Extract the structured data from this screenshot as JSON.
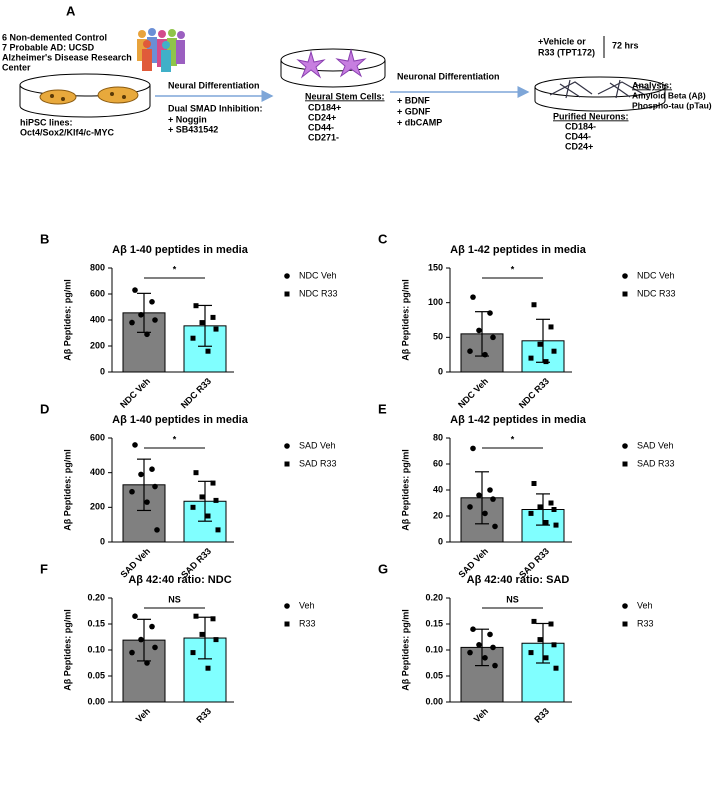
{
  "diagram": {
    "panel": "A",
    "source": [
      "6 Non-demented Control",
      "7 Probable AD: UCSD",
      "Alzheimer's Disease Research",
      "Center"
    ],
    "hipsc": [
      "hiPSC lines:",
      "Oct4/Sox2/Klf4/c-MYC"
    ],
    "step1": "Neural Differentiation",
    "step1_details": [
      "Dual SMAD Inhibition:",
      "+ Noggin",
      "+ SB431542"
    ],
    "nsc_title": "Neural Stem Cells:",
    "nsc_markers": [
      "CD184+",
      "CD24+",
      "CD44-",
      "CD271-"
    ],
    "step2": "Neuronal Differentiation",
    "step2_details": [
      "+ BDNF",
      "+ GDNF",
      "+ dbCAMP"
    ],
    "treatment": [
      "+Vehicle or",
      "R33 (TPT172)"
    ],
    "duration": "72 hrs",
    "neuron_title": "Purified Neurons:",
    "neuron_markers": [
      "CD184-",
      "CD44-",
      "CD24+"
    ],
    "analysis_title": "Analysis:",
    "analysis": [
      "Amyloid Beta (Aβ)",
      "Phospho-tau (pTau)"
    ]
  },
  "chart_data": [
    {
      "type": "bar",
      "panel": "B",
      "title": "Aβ 1-40 peptides in media",
      "ylabel": "Aβ Peptides: pg/ml",
      "categories": [
        "NDC Veh",
        "NDC R33"
      ],
      "values": [
        455,
        355
      ],
      "errors": [
        150,
        157
      ],
      "colors": [
        "#808080",
        "#80ffff"
      ],
      "points": [
        [
          630,
          540,
          440,
          400,
          380,
          290
        ],
        [
          510,
          420,
          380,
          330,
          260,
          160
        ]
      ],
      "legend": [
        "NDC Veh",
        "NDC R33"
      ],
      "markers": [
        "circle",
        "square"
      ],
      "annotation": "*",
      "ylim": [
        0,
        800
      ],
      "yticks": [
        0,
        200,
        400,
        600,
        800
      ]
    },
    {
      "type": "bar",
      "panel": "C",
      "title": "Aβ 1-42 peptides in media",
      "ylabel": "Aβ Peptides: pg/ml",
      "categories": [
        "NDC Veh",
        "NDC R33"
      ],
      "values": [
        55,
        45
      ],
      "errors": [
        32,
        31
      ],
      "colors": [
        "#808080",
        "#80ffff"
      ],
      "points": [
        [
          108,
          85,
          60,
          50,
          30,
          25
        ],
        [
          97,
          65,
          40,
          30,
          20,
          15
        ]
      ],
      "legend": [
        "NDC Veh",
        "NDC R33"
      ],
      "markers": [
        "circle",
        "square"
      ],
      "annotation": "*",
      "ylim": [
        0,
        150
      ],
      "yticks": [
        0,
        50,
        100,
        150
      ]
    },
    {
      "type": "bar",
      "panel": "D",
      "title": "Aβ 1-40 peptides in media",
      "ylabel": "Aβ Peptides: pg/ml",
      "categories": [
        "SAD Veh",
        "SAD R33"
      ],
      "values": [
        330,
        235
      ],
      "errors": [
        148,
        115
      ],
      "colors": [
        "#808080",
        "#80ffff"
      ],
      "points": [
        [
          560,
          420,
          390,
          320,
          290,
          230,
          70
        ],
        [
          400,
          340,
          260,
          240,
          200,
          150,
          70
        ]
      ],
      "legend": [
        "SAD Veh",
        "SAD R33"
      ],
      "markers": [
        "circle",
        "square"
      ],
      "annotation": "*",
      "ylim": [
        0,
        600
      ],
      "yticks": [
        0,
        200,
        400,
        600
      ]
    },
    {
      "type": "bar",
      "panel": "E",
      "title": "Aβ 1-42 peptides in media",
      "ylabel": "Aβ Peptides: pg/ml",
      "categories": [
        "SAD Veh",
        "SAD R33"
      ],
      "values": [
        34,
        25
      ],
      "errors": [
        20,
        12
      ],
      "colors": [
        "#808080",
        "#80ffff"
      ],
      "points": [
        [
          72,
          40,
          36,
          33,
          27,
          22,
          12
        ],
        [
          45,
          30,
          27,
          25,
          22,
          15,
          13
        ]
      ],
      "legend": [
        "SAD Veh",
        "SAD R33"
      ],
      "markers": [
        "circle",
        "square"
      ],
      "annotation": "*",
      "ylim": [
        0,
        80
      ],
      "yticks": [
        0,
        20,
        40,
        60,
        80
      ]
    },
    {
      "type": "bar",
      "panel": "F",
      "title": "Aβ 42:40 ratio: NDC",
      "ylabel": "Aβ Peptides: pg/ml",
      "categories": [
        "Veh",
        "R33"
      ],
      "values": [
        0.119,
        0.123
      ],
      "errors": [
        0.04,
        0.04
      ],
      "colors": [
        "#808080",
        "#80ffff"
      ],
      "points": [
        [
          0.165,
          0.145,
          0.12,
          0.105,
          0.095,
          0.075
        ],
        [
          0.165,
          0.16,
          0.13,
          0.12,
          0.095,
          0.065
        ]
      ],
      "legend": [
        "Veh",
        "R33"
      ],
      "markers": [
        "circle",
        "square"
      ],
      "annotation": "NS",
      "ylim": [
        0,
        0.2
      ],
      "yticks": [
        {
          "value": 0,
          "label": "0.00"
        },
        {
          "value": 0.05,
          "label": "0.05"
        },
        {
          "value": 0.1,
          "label": "0.10"
        },
        {
          "value": 0.15,
          "label": "0.15"
        },
        {
          "value": 0.2,
          "label": "0.20"
        }
      ]
    },
    {
      "type": "bar",
      "panel": "G",
      "title": "Aβ 42:40 ratio: SAD",
      "ylabel": "Aβ Peptides: pg/ml",
      "categories": [
        "Veh",
        "R33"
      ],
      "values": [
        0.105,
        0.113
      ],
      "errors": [
        0.035,
        0.038
      ],
      "colors": [
        "#808080",
        "#80ffff"
      ],
      "points": [
        [
          0.14,
          0.13,
          0.11,
          0.105,
          0.095,
          0.085,
          0.07
        ],
        [
          0.155,
          0.15,
          0.12,
          0.11,
          0.095,
          0.085,
          0.065
        ]
      ],
      "legend": [
        "Veh",
        "R33"
      ],
      "markers": [
        "circle",
        "square"
      ],
      "annotation": "NS",
      "ylim": [
        0,
        0.2
      ],
      "yticks": [
        {
          "value": 0,
          "label": "0.00"
        },
        {
          "value": 0.05,
          "label": "0.05"
        },
        {
          "value": 0.1,
          "label": "0.10"
        },
        {
          "value": 0.15,
          "label": "0.15"
        },
        {
          "value": 0.2,
          "label": "0.20"
        }
      ]
    }
  ]
}
